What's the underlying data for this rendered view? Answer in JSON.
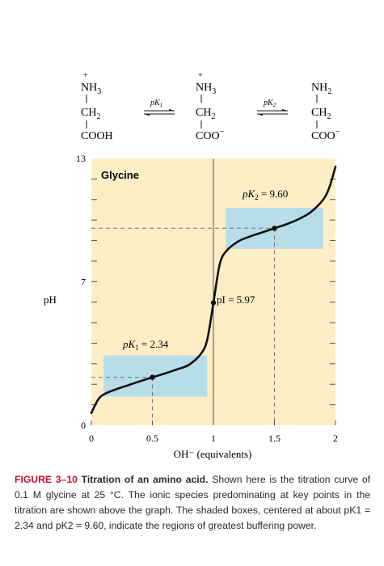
{
  "species": [
    {
      "top": "NH",
      "top_sub": "3",
      "top_charge": "+",
      "mid": "CH",
      "mid_sub": "2",
      "bottom": "COOH",
      "bottom_charge": ""
    },
    {
      "top": "NH",
      "top_sub": "3",
      "top_charge": "+",
      "mid": "CH",
      "mid_sub": "2",
      "bottom": "COO",
      "bottom_charge": "−"
    },
    {
      "top": "NH",
      "top_sub": "2",
      "top_charge": "",
      "mid": "CH",
      "mid_sub": "2",
      "bottom": "COO",
      "bottom_charge": "−"
    }
  ],
  "equilibria": [
    {
      "label_p": "p",
      "label_k": "K",
      "label_sub": "1"
    },
    {
      "label_p": "p",
      "label_k": "K",
      "label_sub": "2"
    }
  ],
  "chart_data": {
    "type": "line",
    "panel_label": "Glycine",
    "xlabel": "OH⁻ (equivalents)",
    "ylabel": "pH",
    "xlim": [
      0,
      2
    ],
    "ylim": [
      0,
      13
    ],
    "x_ticks": [
      0,
      0.5,
      1,
      1.5,
      2
    ],
    "x_tick_labels": [
      "0",
      "0.5",
      "1",
      "1.5",
      "2"
    ],
    "y_tick_labels": [
      {
        "value": 0,
        "label": "0"
      },
      {
        "value": 7,
        "label": "7"
      },
      {
        "value": 13,
        "label": "13"
      }
    ],
    "series": [
      {
        "points": [
          {
            "x": 0.0,
            "y": 0.6
          },
          {
            "x": 0.05,
            "y": 1.2
          },
          {
            "x": 0.1,
            "y": 1.5
          },
          {
            "x": 0.2,
            "y": 1.75
          },
          {
            "x": 0.3,
            "y": 1.95
          },
          {
            "x": 0.4,
            "y": 2.15
          },
          {
            "x": 0.5,
            "y": 2.34
          },
          {
            "x": 0.6,
            "y": 2.52
          },
          {
            "x": 0.7,
            "y": 2.72
          },
          {
            "x": 0.8,
            "y": 2.95
          },
          {
            "x": 0.9,
            "y": 3.5
          },
          {
            "x": 0.95,
            "y": 4.2
          },
          {
            "x": 1.0,
            "y": 5.97
          },
          {
            "x": 1.05,
            "y": 7.8
          },
          {
            "x": 1.1,
            "y": 8.45
          },
          {
            "x": 1.2,
            "y": 8.95
          },
          {
            "x": 1.3,
            "y": 9.2
          },
          {
            "x": 1.4,
            "y": 9.4
          },
          {
            "x": 1.5,
            "y": 9.6
          },
          {
            "x": 1.6,
            "y": 9.8
          },
          {
            "x": 1.7,
            "y": 10.05
          },
          {
            "x": 1.8,
            "y": 10.4
          },
          {
            "x": 1.9,
            "y": 11.0
          },
          {
            "x": 1.95,
            "y": 11.6
          },
          {
            "x": 2.0,
            "y": 12.6
          }
        ]
      }
    ],
    "buffer_regions": [
      {
        "x": [
          0.1,
          0.95
        ],
        "y": [
          1.4,
          3.4
        ]
      },
      {
        "x": [
          1.1,
          1.9
        ],
        "y": [
          8.6,
          10.6
        ]
      }
    ],
    "annotations": [
      {
        "text_p": "p",
        "text_k": "K",
        "text_sub": "1",
        "text_value": " = 2.34",
        "x": 0.5,
        "y": 2.34
      },
      {
        "text_pi": "pI = 5.97",
        "x": 1.0,
        "y": 5.97
      },
      {
        "text_p": "p",
        "text_k": "K",
        "text_sub": "2",
        "text_value": " = 9.60",
        "x": 1.5,
        "y": 9.6
      }
    ],
    "colors": {
      "background": "#fdeec6",
      "buffer_box": "#b7dde8",
      "curve": "#111111",
      "guide_line": "#777777"
    }
  },
  "caption": {
    "label": "FIGURE 3–10",
    "title": "Titration of an amino acid.",
    "body": "Shown here is the titration curve of 0.1 M glycine at 25 °C. The ionic species predominating at key points in the titration are shown above the graph. The shaded boxes, centered at about pK1 = 2.34 and pK2 = 9.60, indicate the regions of greatest buffering power."
  }
}
